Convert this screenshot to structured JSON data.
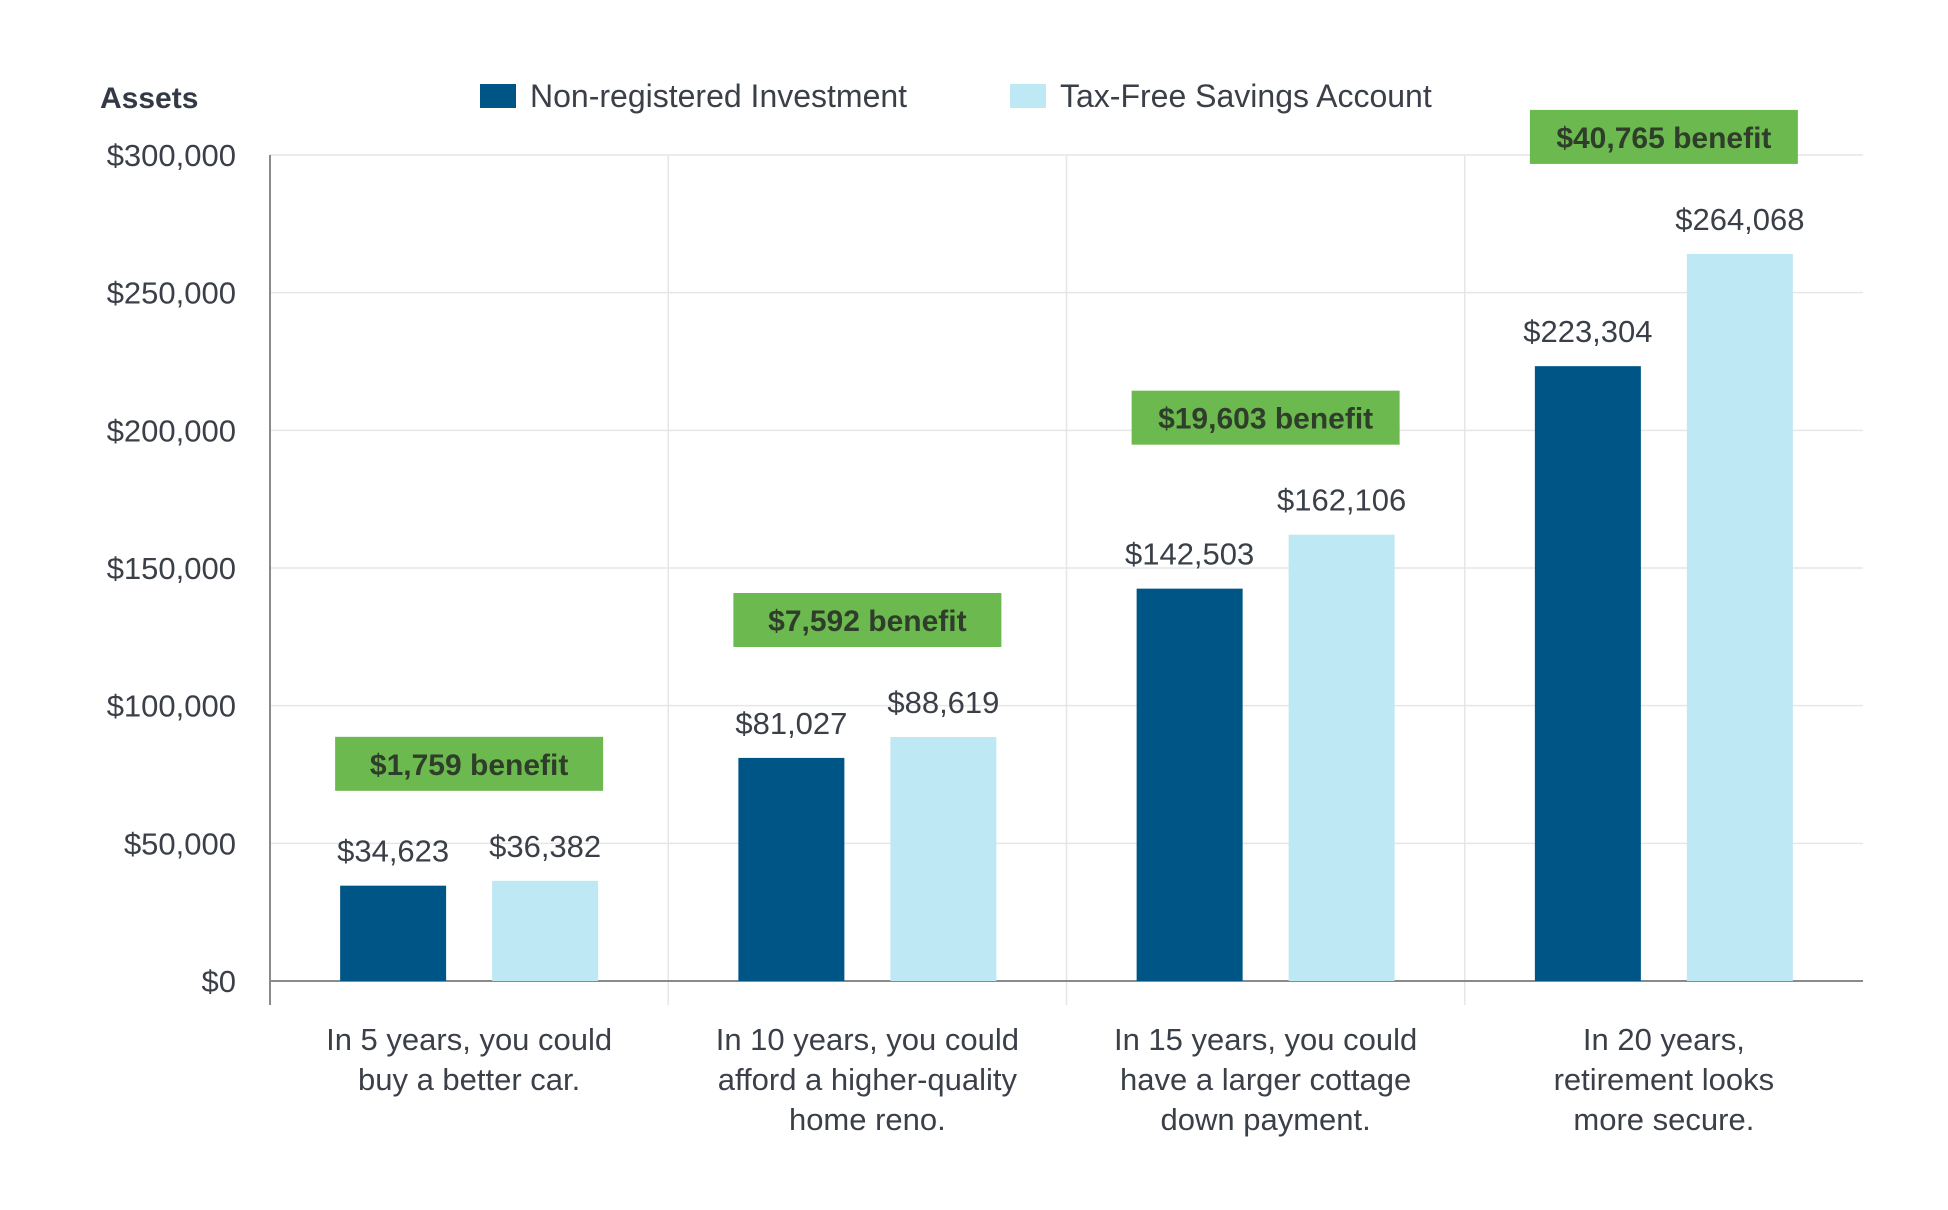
{
  "colors": {
    "series_1": "#005587",
    "series_2": "#bde8f4",
    "benefit_bg": "#6cb94f",
    "grid": "#e6e6e6",
    "axis": "#8a8a8a"
  },
  "chart_data": {
    "type": "bar",
    "ylabel": "Assets",
    "ylim": [
      0,
      300000
    ],
    "yticks": [
      0,
      50000,
      100000,
      150000,
      200000,
      250000,
      300000
    ],
    "ytick_labels": [
      "$0",
      "$50,000",
      "$100,000",
      "$150,000",
      "$200,000",
      "$250,000",
      "$300,000"
    ],
    "legend_position": "top-center",
    "grid": true,
    "categories": [
      [
        "In 5 years, you could",
        "buy a better car."
      ],
      [
        "In 10 years, you could",
        "afford a higher-quality",
        "home reno."
      ],
      [
        "In 15 years, you could",
        "have a larger cottage",
        "down payment."
      ],
      [
        "In 20 years,",
        "retirement looks",
        "more secure."
      ]
    ],
    "series": [
      {
        "name": "Non-registered Investment",
        "values": [
          34623,
          81027,
          142503,
          223304
        ],
        "labels": [
          "$34,623",
          "$81,027",
          "$142,503",
          "$223,304"
        ]
      },
      {
        "name": "Tax-Free Savings Account",
        "values": [
          36382,
          88619,
          162106,
          264068
        ],
        "labels": [
          "$36,382",
          "$88,619",
          "$162,106",
          "$264,068"
        ]
      }
    ],
    "annotations": [
      "$1,759 benefit",
      "$7,592 benefit",
      "$19,603 benefit",
      "$40,765 benefit"
    ]
  }
}
